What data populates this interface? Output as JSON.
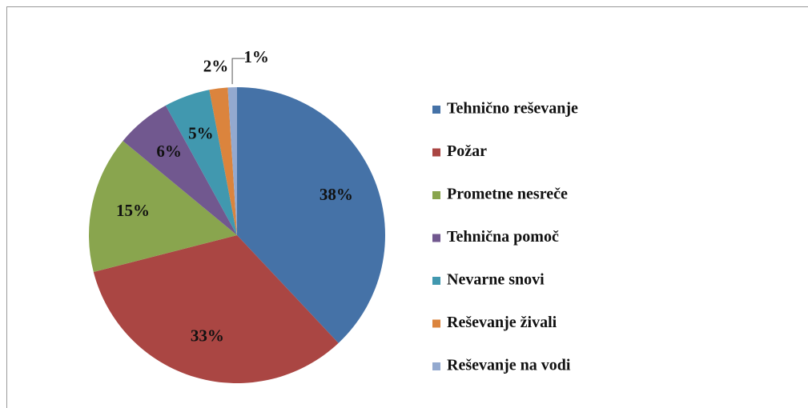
{
  "chart_data": {
    "type": "pie",
    "categories": [
      "Tehnično reševanje",
      "Požar",
      "Prometne nesreče",
      "Tehnična pomoč",
      "Nevarne snovi",
      "Reševanje živali",
      "Reševanje na vodi"
    ],
    "values": [
      38,
      33,
      15,
      6,
      5,
      2,
      1
    ],
    "value_labels": [
      "38%",
      "33%",
      "15%",
      "6%",
      "5%",
      "2%",
      "1%"
    ],
    "colors": [
      "#4572a7",
      "#aa4643",
      "#89a54e",
      "#71588f",
      "#4198af",
      "#db843d",
      "#93a9cf"
    ],
    "legend": "right"
  }
}
